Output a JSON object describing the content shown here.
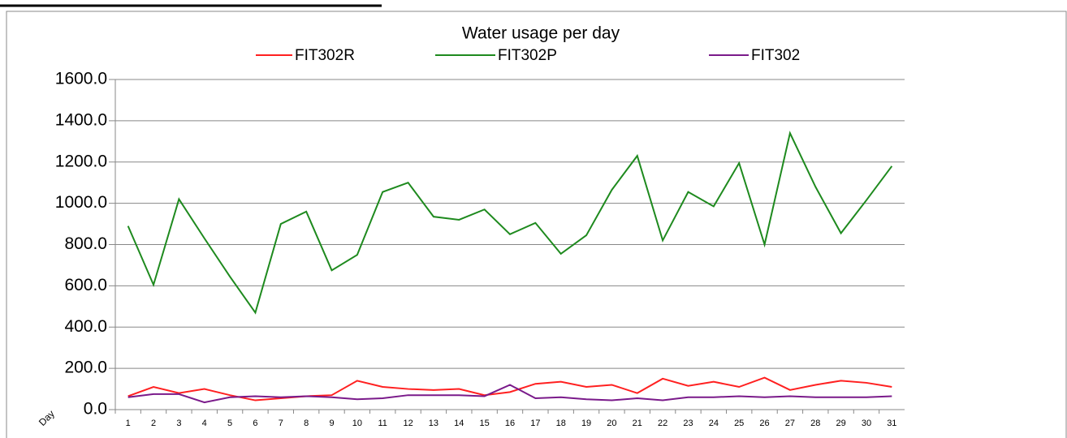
{
  "chart_data": {
    "type": "line",
    "title": "Water usage per day",
    "x_label": "Day",
    "categories": [
      "1",
      "2",
      "3",
      "4",
      "5",
      "6",
      "7",
      "8",
      "9",
      "10",
      "11",
      "12",
      "13",
      "14",
      "15",
      "16",
      "17",
      "18",
      "19",
      "20",
      "21",
      "22",
      "23",
      "24",
      "25",
      "26",
      "27",
      "28",
      "29",
      "30",
      "31"
    ],
    "series": [
      {
        "name": "FIT302R",
        "color": "#ff2020",
        "values": [
          65,
          110,
          80,
          100,
          70,
          45,
          55,
          65,
          70,
          140,
          110,
          100,
          95,
          100,
          70,
          85,
          125,
          135,
          110,
          120,
          80,
          150,
          115,
          135,
          110,
          155,
          95,
          120,
          140,
          130,
          110
        ]
      },
      {
        "name": "FIT302P",
        "color": "#1e8a1e",
        "values": [
          890,
          605,
          1020,
          830,
          645,
          470,
          900,
          960,
          675,
          750,
          1055,
          1100,
          935,
          920,
          970,
          850,
          905,
          755,
          845,
          1065,
          1230,
          820,
          1055,
          985,
          1195,
          800,
          1340,
          1080,
          855,
          1015,
          1180
        ]
      },
      {
        "name": "FIT302",
        "color": "#7a1a8a",
        "values": [
          60,
          75,
          75,
          35,
          60,
          65,
          60,
          65,
          60,
          50,
          55,
          70,
          70,
          70,
          65,
          120,
          55,
          60,
          50,
          45,
          55,
          45,
          60,
          60,
          65,
          60,
          65,
          60,
          60,
          60,
          65
        ]
      }
    ],
    "ylim": [
      0,
      1600
    ],
    "yticks": [
      {
        "value": 0,
        "label": "0.0"
      },
      {
        "value": 200,
        "label": "200.0"
      },
      {
        "value": 400,
        "label": "400.0"
      },
      {
        "value": 600,
        "label": "600.0"
      },
      {
        "value": 800,
        "label": "800.0"
      },
      {
        "value": 1000,
        "label": "1000.0"
      },
      {
        "value": 1200,
        "label": "1200.0"
      },
      {
        "value": 1400,
        "label": "1400.0"
      },
      {
        "value": 1600,
        "label": "1600.0"
      }
    ],
    "grid": true
  }
}
